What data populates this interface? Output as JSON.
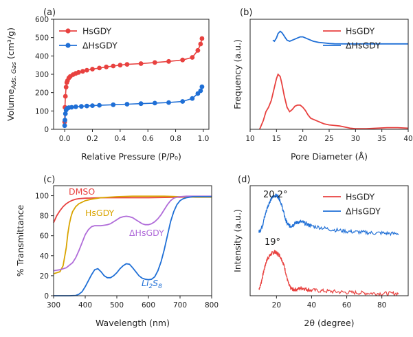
{
  "colors": {
    "red": "#e8413f",
    "blue": "#1f6fd6",
    "gold": "#d9a400",
    "purple": "#b06cd9"
  },
  "chart_data": [
    {
      "panel": "(a)",
      "type": "line",
      "xlabel": "Relative Pressure (P/P₀)",
      "ylabel": "Volume_Ads, Gas (cm³/g)",
      "ylabel_main": "Volume",
      "ylabel_sub": "Ads. Gas",
      "ylabel_unit": " (cm³/g)",
      "xlim": [
        -0.08,
        1.04
      ],
      "ylim": [
        0,
        600
      ],
      "xticks": [
        "0.0",
        "0.2",
        "0.4",
        "0.6",
        "0.8",
        "1.0"
      ],
      "xtick_values": [
        0,
        0.2,
        0.4,
        0.6,
        0.8,
        1.0
      ],
      "yticks": [
        "0",
        "100",
        "200",
        "300",
        "400",
        "500",
        "600"
      ],
      "ytick_values": [
        0,
        100,
        200,
        300,
        400,
        500,
        600
      ],
      "legend_position": "top-left",
      "markers": true,
      "series": [
        {
          "name": "HsGDY",
          "color": "#e8413f",
          "x": [
            0.0,
            0.002,
            0.005,
            0.01,
            0.015,
            0.02,
            0.03,
            0.04,
            0.06,
            0.08,
            0.1,
            0.13,
            0.16,
            0.2,
            0.25,
            0.3,
            0.35,
            0.4,
            0.45,
            0.55,
            0.65,
            0.75,
            0.85,
            0.92,
            0.96,
            0.98,
            0.99
          ],
          "y": [
            40,
            120,
            180,
            230,
            255,
            265,
            280,
            288,
            298,
            305,
            310,
            316,
            322,
            328,
            334,
            340,
            345,
            350,
            354,
            358,
            364,
            370,
            378,
            392,
            430,
            465,
            495
          ]
        },
        {
          "name": "ΔHsGDY",
          "color": "#1f6fd6",
          "x": [
            0.0,
            0.002,
            0.005,
            0.01,
            0.015,
            0.02,
            0.03,
            0.05,
            0.08,
            0.12,
            0.16,
            0.2,
            0.25,
            0.35,
            0.45,
            0.55,
            0.65,
            0.75,
            0.85,
            0.92,
            0.96,
            0.98,
            0.99
          ],
          "y": [
            20,
            50,
            85,
            105,
            112,
            115,
            118,
            120,
            123,
            125,
            127,
            129,
            131,
            134,
            137,
            140,
            143,
            146,
            152,
            168,
            195,
            210,
            232
          ]
        }
      ]
    },
    {
      "panel": "(b)",
      "type": "line",
      "xlabel": "Pore Diameter (Å)",
      "ylabel": "Frequency (a.u.)",
      "xlim": [
        10,
        40
      ],
      "ylim": [
        0,
        1
      ],
      "xticks": [
        "10",
        "15",
        "20",
        "25",
        "30",
        "35",
        "40"
      ],
      "xtick_values": [
        10,
        15,
        20,
        25,
        30,
        35,
        40
      ],
      "yticks": [],
      "legend_position": "top-right",
      "series": [
        {
          "name": "HsGDY",
          "color": "#e8413f",
          "x": [
            11.8,
            12.5,
            13,
            13.5,
            14,
            14.5,
            15,
            15.3,
            15.7,
            16,
            16.5,
            17,
            17.5,
            18,
            18.5,
            19,
            19.5,
            20,
            20.5,
            21,
            21.5,
            22,
            23,
            24,
            25,
            26,
            27,
            28,
            29,
            30,
            32,
            34,
            36,
            38,
            40
          ],
          "y": [
            0.0,
            0.08,
            0.16,
            0.2,
            0.26,
            0.36,
            0.46,
            0.5,
            0.48,
            0.42,
            0.3,
            0.2,
            0.16,
            0.18,
            0.21,
            0.22,
            0.22,
            0.2,
            0.17,
            0.13,
            0.1,
            0.09,
            0.07,
            0.05,
            0.04,
            0.035,
            0.03,
            0.02,
            0.01,
            0.005,
            0.005,
            0.01,
            0.015,
            0.015,
            0.01
          ]
        },
        {
          "name": "ΔHsGDY",
          "color": "#1f6fd6",
          "x": [
            14.3,
            14.6,
            15,
            15.3,
            15.7,
            16,
            16.3,
            16.7,
            17,
            17.5,
            18,
            18.5,
            19,
            19.5,
            20,
            20.5,
            21,
            21.5,
            22,
            23,
            24,
            25,
            26,
            28,
            30,
            35,
            40
          ],
          "y": [
            0.81,
            0.8,
            0.83,
            0.87,
            0.89,
            0.88,
            0.86,
            0.83,
            0.81,
            0.8,
            0.81,
            0.82,
            0.83,
            0.84,
            0.84,
            0.83,
            0.82,
            0.81,
            0.8,
            0.79,
            0.785,
            0.78,
            0.777,
            0.776,
            0.776,
            0.776,
            0.776
          ]
        }
      ]
    },
    {
      "panel": "(c)",
      "type": "line",
      "xlabel": "Wavelength (nm)",
      "ylabel": "% Transmittance",
      "xlim": [
        300,
        800
      ],
      "ylim": [
        0,
        110
      ],
      "xticks": [
        "300",
        "400",
        "500",
        "600",
        "700",
        "800"
      ],
      "xtick_values": [
        300,
        400,
        500,
        600,
        700,
        800
      ],
      "yticks": [
        "0",
        "20",
        "40",
        "60",
        "80",
        "100"
      ],
      "ytick_values": [
        0,
        20,
        40,
        60,
        80,
        100
      ],
      "series": [
        {
          "name": "DMSO",
          "label": "DMSO",
          "color": "#e8413f",
          "x": [
            300,
            310,
            320,
            330,
            340,
            350,
            360,
            370,
            380,
            400,
            450,
            500,
            600,
            700,
            800
          ],
          "y": [
            73,
            80,
            85,
            89,
            92,
            94,
            95.5,
            96.5,
            97,
            97.5,
            98,
            98,
            98,
            98.5,
            99
          ]
        },
        {
          "name": "HsGDY",
          "label": "HsGDY",
          "color": "#d9a400",
          "x": [
            300,
            320,
            330,
            340,
            345,
            350,
            355,
            360,
            370,
            380,
            400,
            420,
            450,
            500,
            550,
            600,
            650,
            700,
            750,
            800
          ],
          "y": [
            22,
            24,
            30,
            48,
            62,
            72,
            79,
            84,
            89,
            92,
            95,
            96.5,
            98,
            99,
            99.5,
            99.5,
            99.5,
            99,
            98.5,
            98.5
          ]
        },
        {
          "name": "ΔHsGDY",
          "label": "ΔHsGDY",
          "color": "#b06cd9",
          "x": [
            300,
            320,
            340,
            360,
            370,
            380,
            390,
            400,
            410,
            420,
            430,
            440,
            450,
            460,
            470,
            480,
            490,
            500,
            510,
            520,
            530,
            540,
            550,
            560,
            570,
            580,
            590,
            600,
            610,
            620,
            630,
            640,
            650,
            660,
            670,
            680,
            690,
            700,
            720,
            750,
            780,
            800
          ],
          "y": [
            25,
            26,
            28,
            33,
            38,
            45,
            53,
            61,
            66,
            69,
            70,
            70,
            70,
            70.5,
            71,
            72,
            74,
            76,
            78,
            79,
            79.5,
            79,
            78,
            76,
            74,
            72,
            71,
            71,
            72,
            74,
            77,
            81,
            86,
            91,
            95,
            97.5,
            98.5,
            99,
            99.5,
            99.5,
            99.5,
            99.5
          ]
        },
        {
          "name": "Li₂S₈",
          "label_base": "Li",
          "label_sub1": "2",
          "label_mid": "S",
          "label_sub2": "8",
          "color": "#1f6fd6",
          "x": [
            300,
            350,
            370,
            380,
            390,
            400,
            410,
            420,
            430,
            440,
            450,
            460,
            470,
            480,
            490,
            500,
            510,
            520,
            530,
            540,
            550,
            560,
            570,
            580,
            590,
            600,
            610,
            620,
            630,
            640,
            650,
            660,
            670,
            680,
            690,
            700,
            710,
            720,
            740,
            760,
            780,
            800
          ],
          "y": [
            0,
            0,
            0.3,
            1.5,
            4,
            9,
            15,
            21,
            26,
            27,
            24,
            20,
            18,
            18,
            20,
            23,
            27,
            30,
            32,
            31.5,
            28,
            24,
            20,
            17.5,
            16.5,
            16,
            16.5,
            19,
            25,
            34,
            46,
            60,
            74,
            84,
            91,
            95,
            97,
            98,
            99,
            99,
            99,
            99
          ]
        }
      ]
    },
    {
      "panel": "(d)",
      "type": "line",
      "xlabel_theta": "2θ",
      "xlabel_unit": " (degree)",
      "ylabel": "Intensity (a.u.)",
      "xlim": [
        5,
        95
      ],
      "ylim": [
        0,
        1
      ],
      "xticks": [
        "20",
        "40",
        "60",
        "80"
      ],
      "xtick_values": [
        20,
        40,
        60,
        80
      ],
      "yticks": [],
      "legend_position": "top-right",
      "annotations": [
        {
          "text": "20.2°",
          "series": "ΔHsGDY"
        },
        {
          "text": "19°",
          "series": "HsGDY"
        }
      ],
      "series": [
        {
          "name": "HsGDY",
          "color": "#e8413f",
          "x": [
            10,
            11,
            12,
            13,
            14,
            15,
            16,
            17,
            18,
            19,
            20,
            21,
            22,
            23,
            24,
            25,
            26,
            27,
            28,
            29,
            30,
            32,
            34,
            36,
            38,
            40,
            45,
            50,
            55,
            60,
            65,
            70,
            75,
            80,
            85,
            90
          ],
          "y": [
            0.06,
            0.1,
            0.17,
            0.24,
            0.3,
            0.34,
            0.36,
            0.38,
            0.39,
            0.4,
            0.39,
            0.38,
            0.36,
            0.33,
            0.29,
            0.23,
            0.16,
            0.1,
            0.07,
            0.06,
            0.055,
            0.06,
            0.07,
            0.065,
            0.055,
            0.05,
            0.045,
            0.04,
            0.035,
            0.03,
            0.028,
            0.025,
            0.022,
            0.02,
            0.02,
            0.02
          ],
          "noise": 0.018
        },
        {
          "name": "ΔHsGDY",
          "color": "#1f6fd6",
          "x": [
            10,
            11,
            12,
            13,
            14,
            15,
            16,
            17,
            18,
            19,
            20,
            21,
            22,
            23,
            24,
            25,
            26,
            27,
            28,
            29,
            30,
            32,
            34,
            36,
            38,
            40,
            45,
            50,
            55,
            60,
            65,
            70,
            75,
            80,
            85,
            90
          ],
          "y": [
            0.58,
            0.6,
            0.64,
            0.7,
            0.76,
            0.81,
            0.85,
            0.88,
            0.9,
            0.91,
            0.91,
            0.9,
            0.87,
            0.82,
            0.76,
            0.7,
            0.66,
            0.64,
            0.63,
            0.64,
            0.65,
            0.67,
            0.67,
            0.66,
            0.645,
            0.635,
            0.62,
            0.605,
            0.595,
            0.585,
            0.58,
            0.575,
            0.57,
            0.57,
            0.565,
            0.565
          ],
          "noise": 0.018
        }
      ]
    }
  ]
}
